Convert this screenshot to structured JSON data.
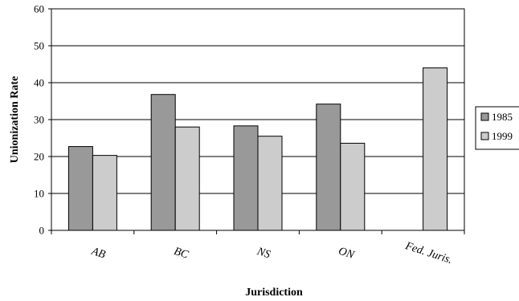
{
  "chart_data": {
    "type": "bar",
    "title": "",
    "xlabel": "Jurisdiction",
    "ylabel": "Unionization Rate",
    "ylim": [
      0,
      60
    ],
    "yticks": [
      0,
      10,
      20,
      30,
      40,
      50,
      60
    ],
    "grid": true,
    "legend_position": "right",
    "categories": [
      "AB",
      "BC",
      "NS",
      "ON",
      "Fed. Juris."
    ],
    "series": [
      {
        "name": "1985",
        "color": "#999999",
        "values": [
          22.7,
          36.8,
          28.3,
          34.2,
          null
        ]
      },
      {
        "name": "1999",
        "color": "#cccccc",
        "values": [
          20.3,
          28.0,
          25.5,
          23.6,
          44.0
        ]
      }
    ]
  }
}
